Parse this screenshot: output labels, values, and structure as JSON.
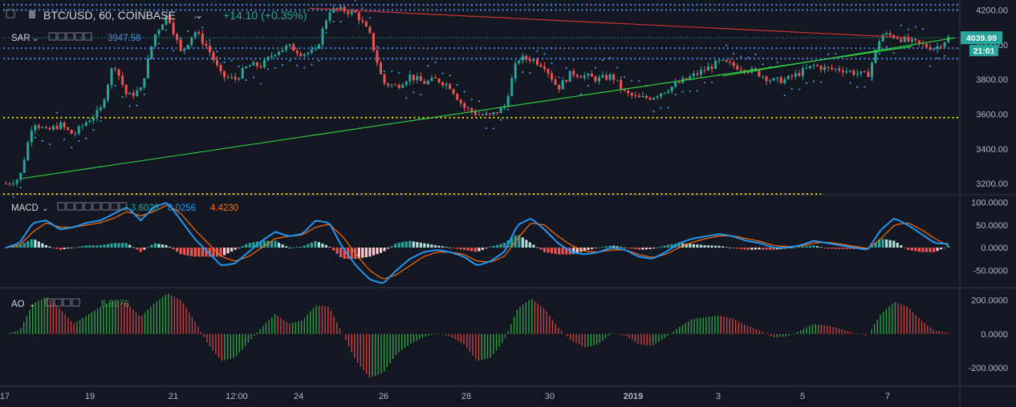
{
  "header": {
    "symbol": "BTC/USD, 60, COINBASE",
    "change": "+14.10 (+0.35%)"
  },
  "sar_legend": {
    "name": "SAR",
    "value": "3947.58"
  },
  "macd_legend": {
    "name": "MACD",
    "v1": "3.6026",
    "v2": "8.0256",
    "v3": "4.4230"
  },
  "ao_legend": {
    "name": "AO",
    "value": "6.9276"
  },
  "price_tag": {
    "price": "4039.99",
    "countdown": "21:01"
  },
  "colors": {
    "background": "#131722",
    "up": "#26a69a",
    "down": "#ef5350",
    "sar_dots": "#4a90e2",
    "resistance_dots": "#4a7fd6",
    "support_dots": "#e6d800",
    "trend_up": "#2ecc40",
    "trend_down": "#d03232",
    "macd_line": "#2196f3",
    "signal_line": "#ff6d00",
    "ao_up": "#2ea043",
    "ao_down": "#c94040"
  },
  "chart_data": [
    {
      "type": "candlestick",
      "title": "BTC/USD, 60, COINBASE",
      "ylim": [
        3150,
        4230
      ],
      "y_ticks": [
        "4200.00",
        "4000.00",
        "3800.00",
        "3600.00",
        "3400.00",
        "3200.00"
      ],
      "x_ticks": [
        "17",
        "19",
        "21",
        "12:00",
        "24",
        "26",
        "28",
        "30",
        "2019",
        "3",
        "5",
        "7"
      ],
      "price_path": [
        3200,
        3230,
        3560,
        3500,
        3540,
        3480,
        3560,
        3620,
        3900,
        3700,
        3740,
        4050,
        4180,
        3950,
        4080,
        3980,
        3820,
        3800,
        3880,
        3880,
        3960,
        3990,
        3950,
        3960,
        4200,
        4200,
        4180,
        4060,
        3780,
        3760,
        3820,
        3780,
        3800,
        3760,
        3640,
        3600,
        3590,
        3640,
        3920,
        3920,
        3880,
        3750,
        3840,
        3820,
        3800,
        3820,
        3720,
        3690,
        3700,
        3740,
        3780,
        3820,
        3860,
        3900,
        3880,
        3860,
        3830,
        3790,
        3800,
        3840,
        3880,
        3860,
        3860,
        3840,
        3820,
        4060,
        4050,
        4020,
        4000,
        3980,
        4040
      ],
      "resistance_levels": [
        4230,
        4200,
        3980,
        3920
      ],
      "support_levels": [
        3580,
        3140
      ],
      "rising_trendline": {
        "from": [
          0.02,
          3230
        ],
        "to": [
          0.95,
          3990
        ]
      },
      "falling_trendline": {
        "from": [
          0.32,
          4210
        ],
        "to": [
          0.95,
          4040
        ]
      }
    },
    {
      "type": "line",
      "name": "MACD",
      "ylim": [
        -85,
        110
      ],
      "y_ticks": [
        "100.0000",
        "50.0000",
        "0.0000",
        "-50.0000"
      ],
      "series": [
        {
          "name": "MACD",
          "values": [
            0,
            10,
            55,
            60,
            40,
            45,
            55,
            60,
            75,
            90,
            60,
            90,
            100,
            60,
            20,
            -10,
            -40,
            -35,
            -10,
            15,
            35,
            25,
            30,
            60,
            55,
            0,
            -40,
            -70,
            -80,
            -50,
            -25,
            -10,
            -5,
            -10,
            -20,
            -40,
            -30,
            -10,
            50,
            65,
            40,
            10,
            -10,
            -15,
            -10,
            0,
            -5,
            -20,
            -25,
            -10,
            10,
            20,
            25,
            30,
            25,
            15,
            10,
            0,
            0,
            5,
            15,
            10,
            5,
            0,
            -5,
            40,
            65,
            50,
            30,
            10,
            8
          ]
        },
        {
          "name": "Signal",
          "values": [
            0,
            5,
            35,
            55,
            45,
            45,
            50,
            55,
            65,
            80,
            70,
            80,
            95,
            75,
            40,
            10,
            -20,
            -30,
            -20,
            0,
            20,
            25,
            28,
            45,
            52,
            25,
            -15,
            -50,
            -70,
            -60,
            -40,
            -20,
            -10,
            -10,
            -15,
            -30,
            -32,
            -20,
            20,
            55,
            50,
            25,
            5,
            -8,
            -10,
            -5,
            -5,
            -15,
            -22,
            -15,
            0,
            12,
            20,
            26,
            26,
            20,
            14,
            5,
            2,
            3,
            10,
            12,
            8,
            3,
            -2,
            20,
            50,
            55,
            40,
            20,
            4
          ]
        }
      ]
    },
    {
      "type": "bar",
      "name": "AO",
      "ylim": [
        -290,
        260
      ],
      "y_ticks": [
        "200.0000",
        "0.0000",
        "-200.0000"
      ],
      "values": [
        0,
        20,
        180,
        220,
        150,
        60,
        110,
        160,
        200,
        180,
        100,
        180,
        240,
        200,
        80,
        -60,
        -160,
        -140,
        -50,
        40,
        120,
        60,
        80,
        170,
        160,
        0,
        -160,
        -260,
        -230,
        -120,
        -60,
        -20,
        5,
        -15,
        -60,
        -160,
        -140,
        -40,
        150,
        210,
        150,
        40,
        -40,
        -80,
        -60,
        5,
        -10,
        -60,
        -70,
        -20,
        40,
        90,
        100,
        110,
        90,
        50,
        20,
        -20,
        -15,
        20,
        60,
        50,
        30,
        5,
        -10,
        120,
        190,
        160,
        80,
        20,
        7
      ]
    }
  ]
}
